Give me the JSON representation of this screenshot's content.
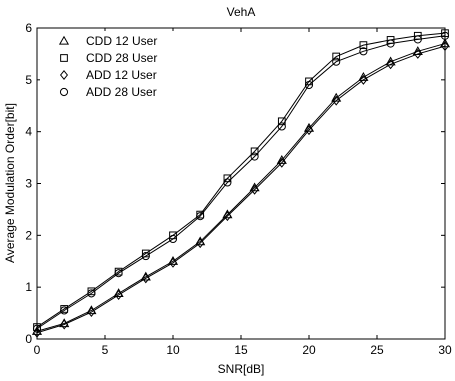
{
  "chart_data": {
    "type": "line",
    "title": "VehA",
    "xlabel": "SNR[dB]",
    "ylabel": "Average Modulation Order[bit]",
    "xlim": [
      0,
      30
    ],
    "ylim": [
      0,
      6
    ],
    "xticks": [
      "0",
      "5",
      "10",
      "15",
      "20",
      "25",
      "30"
    ],
    "yticks": [
      "0",
      "1",
      "2",
      "3",
      "4",
      "5",
      "6"
    ],
    "grid": false,
    "legend_position": "top-left",
    "x": [
      0,
      2,
      4,
      6,
      8,
      10,
      12,
      14,
      16,
      18,
      20,
      22,
      24,
      26,
      28,
      30
    ],
    "series": [
      {
        "name": "CDD 12 User",
        "marker": "triangle",
        "values": [
          0.15,
          0.3,
          0.55,
          0.88,
          1.2,
          1.5,
          1.88,
          2.4,
          2.92,
          3.45,
          4.07,
          4.65,
          5.05,
          5.35,
          5.55,
          5.7
        ]
      },
      {
        "name": "CDD 28 User",
        "marker": "square",
        "values": [
          0.23,
          0.58,
          0.92,
          1.3,
          1.65,
          2.0,
          2.4,
          3.1,
          3.62,
          4.2,
          4.97,
          5.45,
          5.67,
          5.77,
          5.85,
          5.9
        ]
      },
      {
        "name": "ADD 12 User",
        "marker": "diamond",
        "values": [
          0.12,
          0.28,
          0.52,
          0.85,
          1.17,
          1.47,
          1.85,
          2.37,
          2.88,
          3.4,
          4.03,
          4.6,
          5.0,
          5.3,
          5.5,
          5.65
        ]
      },
      {
        "name": "ADD 28 User",
        "marker": "circle",
        "values": [
          0.2,
          0.55,
          0.88,
          1.27,
          1.6,
          1.93,
          2.37,
          3.02,
          3.52,
          4.1,
          4.9,
          5.35,
          5.55,
          5.7,
          5.78,
          5.85
        ]
      }
    ]
  }
}
